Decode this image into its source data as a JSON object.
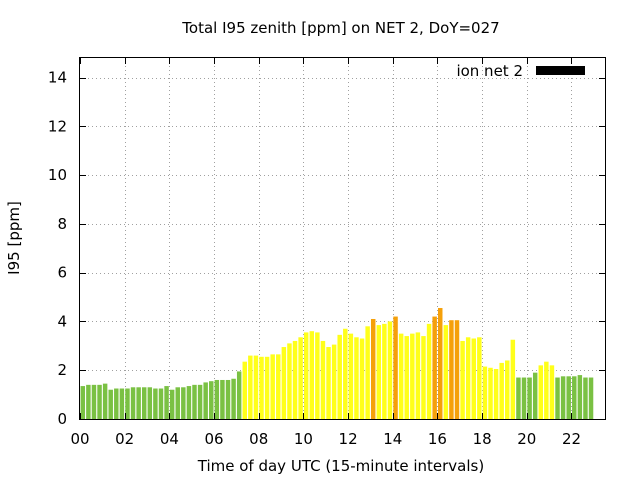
{
  "chart_data": {
    "type": "bar",
    "title": "Total I95 zenith [ppm] on NET 2, DoY=027",
    "xlabel": "Time of day UTC (15-minute intervals)",
    "ylabel": "I95 [ppm]",
    "legend": {
      "label": "ion net 2",
      "placement": "top-right",
      "swatch_color": "#000000"
    },
    "ylim": [
      0,
      14.8
    ],
    "xlim": [
      0,
      23.5
    ],
    "x_ticks": [
      {
        "value": 0,
        "label": "00"
      },
      {
        "value": 2,
        "label": "02"
      },
      {
        "value": 4,
        "label": "04"
      },
      {
        "value": 6,
        "label": "06"
      },
      {
        "value": 8,
        "label": "08"
      },
      {
        "value": 10,
        "label": "10"
      },
      {
        "value": 12,
        "label": "12"
      },
      {
        "value": 14,
        "label": "14"
      },
      {
        "value": 16,
        "label": "16"
      },
      {
        "value": 18,
        "label": "18"
      },
      {
        "value": 20,
        "label": "20"
      },
      {
        "value": 22,
        "label": "22"
      }
    ],
    "y_ticks": [
      {
        "value": 0,
        "label": "0"
      },
      {
        "value": 2,
        "label": "2"
      },
      {
        "value": 4,
        "label": "4"
      },
      {
        "value": 6,
        "label": "6"
      },
      {
        "value": 8,
        "label": "8"
      },
      {
        "value": 10,
        "label": "10"
      },
      {
        "value": 12,
        "label": "12"
      },
      {
        "value": 14,
        "label": "14"
      }
    ],
    "grid": true,
    "bar_width_hours": 0.2,
    "colors": {
      "green": "#7ac143",
      "yellow": "#ffff1a",
      "orange": "#f5a00a"
    },
    "x_start_hours": 0.125,
    "x_step_hours": 0.25,
    "values": [
      1.35,
      1.4,
      1.4,
      1.4,
      1.45,
      1.2,
      1.25,
      1.25,
      1.25,
      1.3,
      1.3,
      1.3,
      1.3,
      1.25,
      1.25,
      1.35,
      1.2,
      1.3,
      1.3,
      1.35,
      1.4,
      1.4,
      1.5,
      1.55,
      1.6,
      1.6,
      1.6,
      1.65,
      1.95,
      2.35,
      2.6,
      2.6,
      2.55,
      2.55,
      2.65,
      2.65,
      2.95,
      3.1,
      3.2,
      3.35,
      3.55,
      3.6,
      3.55,
      3.2,
      2.95,
      3.05,
      3.45,
      3.7,
      3.5,
      3.35,
      3.3,
      3.8,
      4.1,
      3.85,
      3.9,
      4.0,
      4.2,
      3.5,
      3.4,
      3.5,
      3.55,
      3.4,
      3.9,
      4.2,
      4.55,
      3.85,
      4.05,
      4.05,
      3.2,
      3.35,
      3.3,
      3.35,
      2.15,
      2.1,
      2.05,
      2.3,
      2.4,
      3.25,
      1.7,
      1.7,
      1.7,
      1.9,
      2.2,
      2.35,
      2.2,
      1.7,
      1.75,
      1.75,
      1.75,
      1.8,
      1.7,
      1.7
    ],
    "bar_colors": [
      "green",
      "green",
      "green",
      "green",
      "green",
      "green",
      "green",
      "green",
      "green",
      "green",
      "green",
      "green",
      "green",
      "green",
      "green",
      "green",
      "green",
      "green",
      "green",
      "green",
      "green",
      "green",
      "green",
      "green",
      "green",
      "green",
      "green",
      "green",
      "green",
      "yellow",
      "yellow",
      "yellow",
      "yellow",
      "yellow",
      "yellow",
      "yellow",
      "yellow",
      "yellow",
      "yellow",
      "yellow",
      "yellow",
      "yellow",
      "yellow",
      "yellow",
      "yellow",
      "yellow",
      "yellow",
      "yellow",
      "yellow",
      "yellow",
      "yellow",
      "yellow",
      "orange",
      "yellow",
      "yellow",
      "yellow",
      "orange",
      "yellow",
      "yellow",
      "yellow",
      "yellow",
      "yellow",
      "yellow",
      "orange",
      "orange",
      "yellow",
      "orange",
      "orange",
      "yellow",
      "yellow",
      "yellow",
      "yellow",
      "yellow",
      "yellow",
      "yellow",
      "yellow",
      "yellow",
      "yellow",
      "green",
      "green",
      "green",
      "green",
      "yellow",
      "yellow",
      "yellow",
      "green",
      "green",
      "green",
      "green",
      "green",
      "green",
      "green"
    ]
  }
}
